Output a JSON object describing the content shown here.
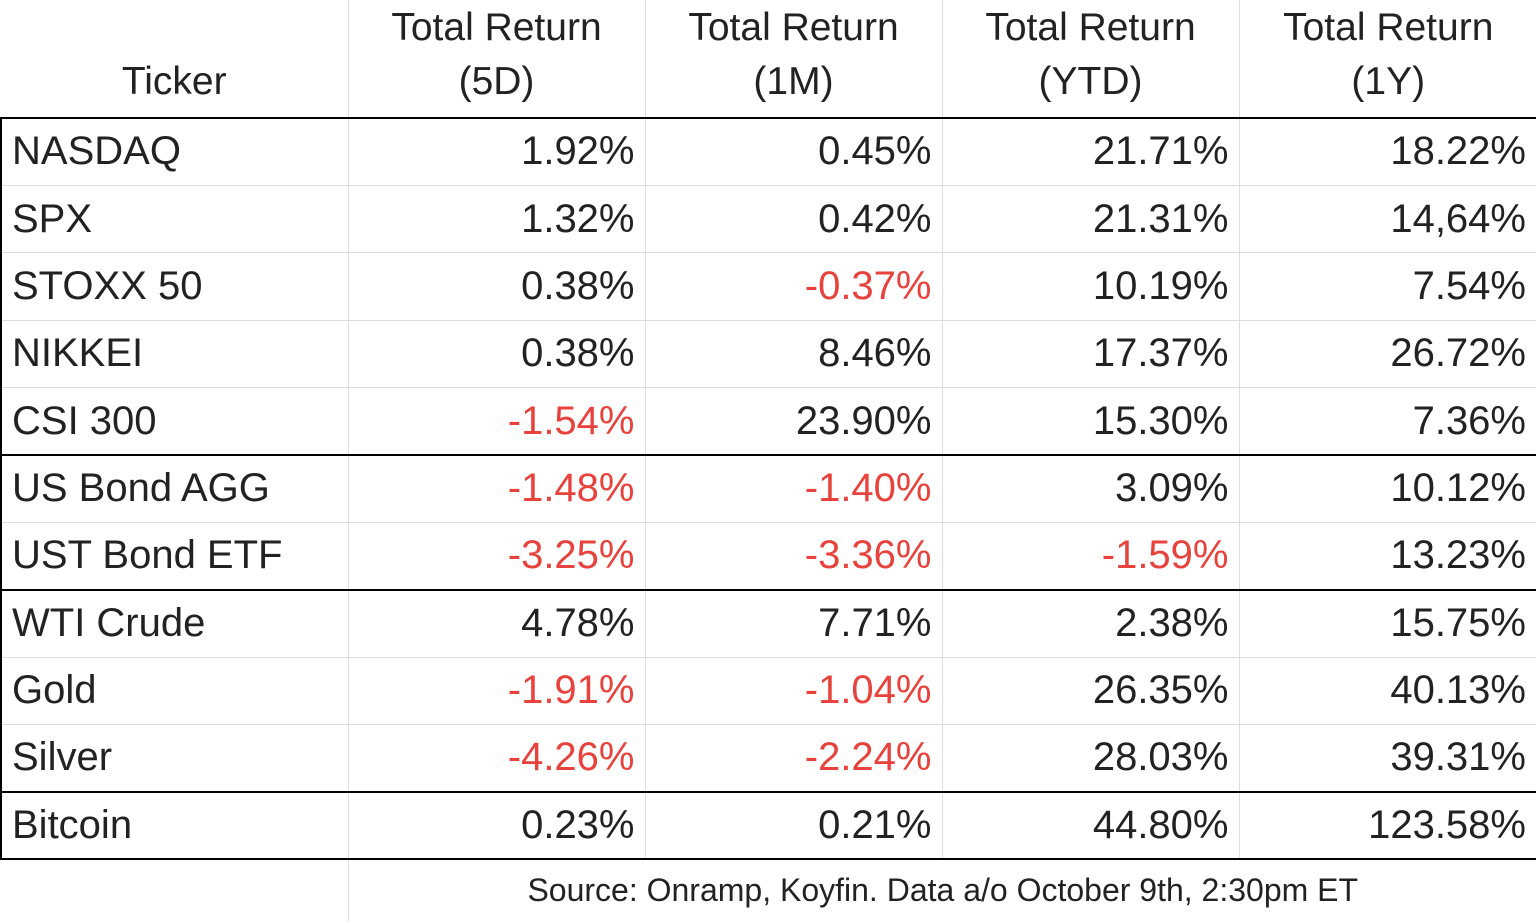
{
  "table": {
    "header": [
      "Ticker",
      "Total Return (5D)",
      "Total Return (1M)",
      "Total Return (YTD)",
      "Total Return (1Y)"
    ],
    "rows": [
      [
        "NASDAQ",
        "1.92%",
        "0.45%",
        "21.71%",
        "18.22%"
      ],
      [
        "SPX",
        "1.32%",
        "0.42%",
        "21.31%",
        "14,64%"
      ],
      [
        "STOXX 50",
        "0.38%",
        "-0.37%",
        "10.19%",
        "7.54%"
      ],
      [
        "NIKKEI",
        "0.38%",
        "8.46%",
        "17.37%",
        "26.72%"
      ],
      [
        "CSI 300",
        "-1.54%",
        "23.90%",
        "15.30%",
        "7.36%"
      ],
      [
        "US Bond AGG",
        "-1.48%",
        "-1.40%",
        "3.09%",
        "10.12%"
      ],
      [
        "UST Bond ETF",
        "-3.25%",
        "-3.36%",
        "-1.59%",
        "13.23%"
      ],
      [
        "WTI Crude",
        "4.78%",
        "7.71%",
        "2.38%",
        "15.75%"
      ],
      [
        "Gold",
        "-1.91%",
        "-1.04%",
        "26.35%",
        "40.13%"
      ],
      [
        "Silver",
        "-4.26%",
        "-2.24%",
        "28.03%",
        "39.31%"
      ],
      [
        "Bitcoin",
        "0.23%",
        "0.21%",
        "44.80%",
        "123.58%"
      ]
    ],
    "source": "Source: Onramp, Koyfin. Data a/o October 9th, 2:30pm ET"
  }
}
